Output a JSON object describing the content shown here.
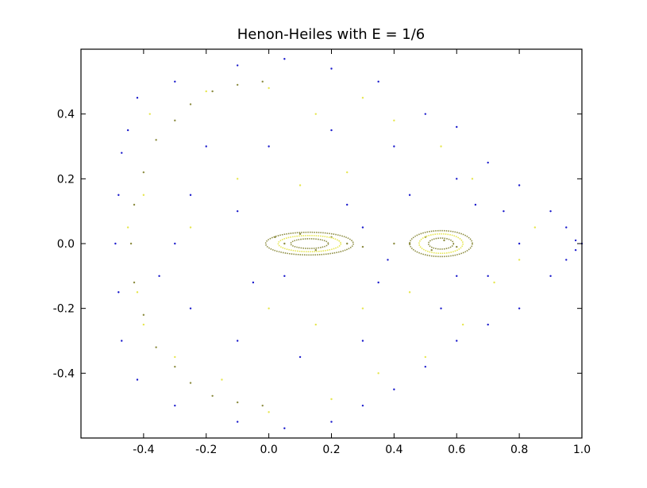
{
  "chart_data": {
    "type": "scatter",
    "title": "Henon-Heiles with E = 1/6",
    "xlabel": "",
    "ylabel": "",
    "xlim": [
      -0.6,
      1.0
    ],
    "ylim": [
      -0.6,
      0.6
    ],
    "x_ticks": [
      -0.4,
      -0.2,
      0.0,
      0.2,
      0.4,
      0.6,
      0.8,
      1.0
    ],
    "x_tick_labels": [
      "-0.4",
      "-0.2",
      "0.0",
      "0.2",
      "0.4",
      "0.6",
      "0.8",
      "1.0"
    ],
    "y_ticks": [
      0.4,
      0.2,
      0.0,
      -0.2,
      -0.4
    ],
    "y_tick_labels": [
      "0.4",
      "0.2",
      "0.0",
      "-0.2",
      "-0.4"
    ],
    "grid": false,
    "legend": "none",
    "colors": {
      "chaotic": "#1a1acc",
      "yellow": "#e6e64d",
      "olive": "#8c8c40"
    },
    "series": [
      {
        "color_key": "chaotic",
        "points": [
          [
            -0.45,
            0.35
          ],
          [
            -0.42,
            0.45
          ],
          [
            -0.3,
            0.5
          ],
          [
            -0.1,
            0.55
          ],
          [
            0.05,
            0.57
          ],
          [
            0.2,
            0.54
          ],
          [
            0.35,
            0.5
          ],
          [
            0.5,
            0.4
          ],
          [
            0.6,
            0.36
          ],
          [
            0.7,
            0.25
          ],
          [
            0.8,
            0.18
          ],
          [
            0.9,
            0.1
          ],
          [
            0.95,
            0.05
          ],
          [
            0.98,
            0.01
          ],
          [
            1.0,
            0.0
          ],
          [
            0.98,
            -0.02
          ],
          [
            0.95,
            -0.05
          ],
          [
            0.9,
            -0.1
          ],
          [
            0.8,
            -0.2
          ],
          [
            0.7,
            -0.25
          ],
          [
            0.6,
            -0.3
          ],
          [
            0.5,
            -0.38
          ],
          [
            0.4,
            -0.45
          ],
          [
            0.3,
            -0.5
          ],
          [
            0.2,
            -0.55
          ],
          [
            0.05,
            -0.57
          ],
          [
            -0.1,
            -0.55
          ],
          [
            -0.3,
            -0.5
          ],
          [
            -0.42,
            -0.42
          ],
          [
            -0.47,
            -0.3
          ],
          [
            -0.48,
            -0.15
          ],
          [
            -0.49,
            0.0
          ],
          [
            -0.48,
            0.15
          ],
          [
            -0.47,
            0.28
          ],
          [
            -0.2,
            0.3
          ],
          [
            0.0,
            0.3
          ],
          [
            0.2,
            0.35
          ],
          [
            0.4,
            0.3
          ],
          [
            0.6,
            0.2
          ],
          [
            0.75,
            0.1
          ],
          [
            0.8,
            0.0
          ],
          [
            0.7,
            -0.1
          ],
          [
            0.55,
            -0.2
          ],
          [
            0.3,
            -0.3
          ],
          [
            0.1,
            -0.35
          ],
          [
            -0.1,
            -0.3
          ],
          [
            -0.25,
            -0.2
          ],
          [
            -0.3,
            0.0
          ],
          [
            -0.25,
            0.15
          ],
          [
            -0.1,
            0.1
          ],
          [
            0.05,
            -0.1
          ],
          [
            0.25,
            0.12
          ],
          [
            0.35,
            -0.12
          ],
          [
            0.45,
            0.15
          ],
          [
            0.6,
            -0.1
          ],
          [
            0.66,
            0.12
          ],
          [
            0.3,
            0.05
          ],
          [
            0.38,
            -0.05
          ],
          [
            -0.05,
            -0.12
          ],
          [
            -0.35,
            -0.1
          ]
        ]
      },
      {
        "color_key": "yellow",
        "points": [
          [
            -0.38,
            0.4
          ],
          [
            -0.2,
            0.47
          ],
          [
            0.0,
            0.48
          ],
          [
            0.15,
            0.4
          ],
          [
            0.3,
            0.45
          ],
          [
            -0.4,
            0.15
          ],
          [
            -0.45,
            0.05
          ],
          [
            -0.42,
            -0.15
          ],
          [
            -0.4,
            -0.25
          ],
          [
            -0.3,
            -0.35
          ],
          [
            -0.15,
            -0.42
          ],
          [
            0.0,
            -0.52
          ],
          [
            0.2,
            -0.48
          ],
          [
            0.35,
            -0.4
          ],
          [
            0.5,
            -0.35
          ],
          [
            0.62,
            -0.25
          ],
          [
            0.72,
            -0.12
          ],
          [
            0.85,
            0.05
          ],
          [
            0.8,
            -0.05
          ],
          [
            0.65,
            0.2
          ],
          [
            0.55,
            0.3
          ],
          [
            0.4,
            0.38
          ],
          [
            0.25,
            0.22
          ],
          [
            0.1,
            0.18
          ],
          [
            -0.1,
            0.2
          ],
          [
            -0.25,
            0.05
          ],
          [
            0.0,
            -0.2
          ],
          [
            0.15,
            -0.25
          ],
          [
            0.3,
            -0.2
          ],
          [
            0.45,
            -0.15
          ]
        ]
      },
      {
        "color_key": "olive",
        "points": [
          [
            -0.36,
            0.32
          ],
          [
            -0.3,
            0.38
          ],
          [
            -0.25,
            0.43
          ],
          [
            -0.18,
            0.47
          ],
          [
            -0.1,
            0.49
          ],
          [
            -0.02,
            0.5
          ],
          [
            -0.4,
            0.22
          ],
          [
            -0.43,
            0.12
          ],
          [
            -0.44,
            0.0
          ],
          [
            -0.43,
            -0.12
          ],
          [
            -0.4,
            -0.22
          ],
          [
            -0.36,
            -0.32
          ],
          [
            -0.3,
            -0.38
          ],
          [
            -0.25,
            -0.43
          ],
          [
            -0.18,
            -0.47
          ],
          [
            -0.1,
            -0.49
          ],
          [
            -0.02,
            -0.5
          ],
          [
            0.02,
            0.02
          ],
          [
            0.05,
            0.0
          ],
          [
            0.1,
            0.03
          ],
          [
            0.2,
            0.02
          ],
          [
            0.25,
            0.0
          ],
          [
            0.15,
            -0.02
          ],
          [
            0.3,
            -0.01
          ],
          [
            0.45,
            0.0
          ],
          [
            0.5,
            0.02
          ],
          [
            0.56,
            0.01
          ],
          [
            0.6,
            -0.01
          ],
          [
            0.52,
            -0.02
          ],
          [
            0.4,
            0.0
          ]
        ]
      }
    ],
    "islands": [
      {
        "color_key": "olive",
        "cx": 0.13,
        "cy": 0.0,
        "rx": 0.14,
        "ry": 0.035
      },
      {
        "color_key": "yellow",
        "cx": 0.13,
        "cy": 0.0,
        "rx": 0.1,
        "ry": 0.025
      },
      {
        "color_key": "olive",
        "cx": 0.13,
        "cy": 0.0,
        "rx": 0.06,
        "ry": 0.015
      },
      {
        "color_key": "olive",
        "cx": 0.55,
        "cy": 0.0,
        "rx": 0.1,
        "ry": 0.04
      },
      {
        "color_key": "yellow",
        "cx": 0.55,
        "cy": 0.0,
        "rx": 0.07,
        "ry": 0.03
      },
      {
        "color_key": "olive",
        "cx": 0.55,
        "cy": 0.0,
        "rx": 0.04,
        "ry": 0.017
      }
    ]
  }
}
